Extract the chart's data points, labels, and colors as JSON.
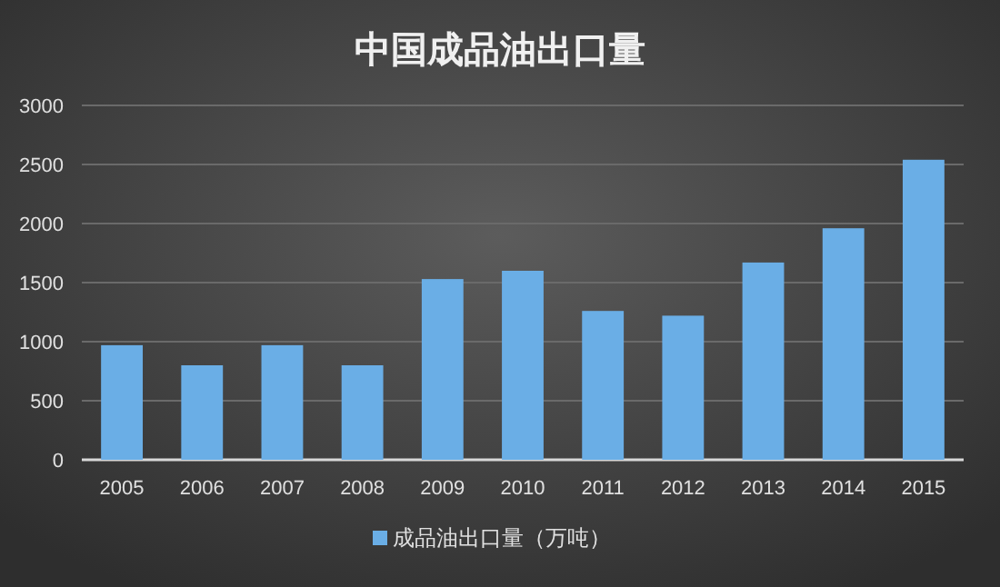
{
  "chart_data": {
    "type": "bar",
    "title": "中国成品油出口量",
    "categories": [
      "2005",
      "2006",
      "2007",
      "2008",
      "2009",
      "2010",
      "2011",
      "2012",
      "2013",
      "2014",
      "2015"
    ],
    "series": [
      {
        "name": "成品油出口量（万吨）",
        "color": "#6aaee6",
        "values": [
          970,
          800,
          970,
          800,
          1530,
          1600,
          1260,
          1220,
          1670,
          1960,
          2540
        ]
      }
    ],
    "ylim": [
      0,
      3000
    ],
    "yticks": [
      0,
      500,
      1000,
      1500,
      2000,
      2500,
      3000
    ],
    "grid": "y",
    "legend": "bottom"
  }
}
